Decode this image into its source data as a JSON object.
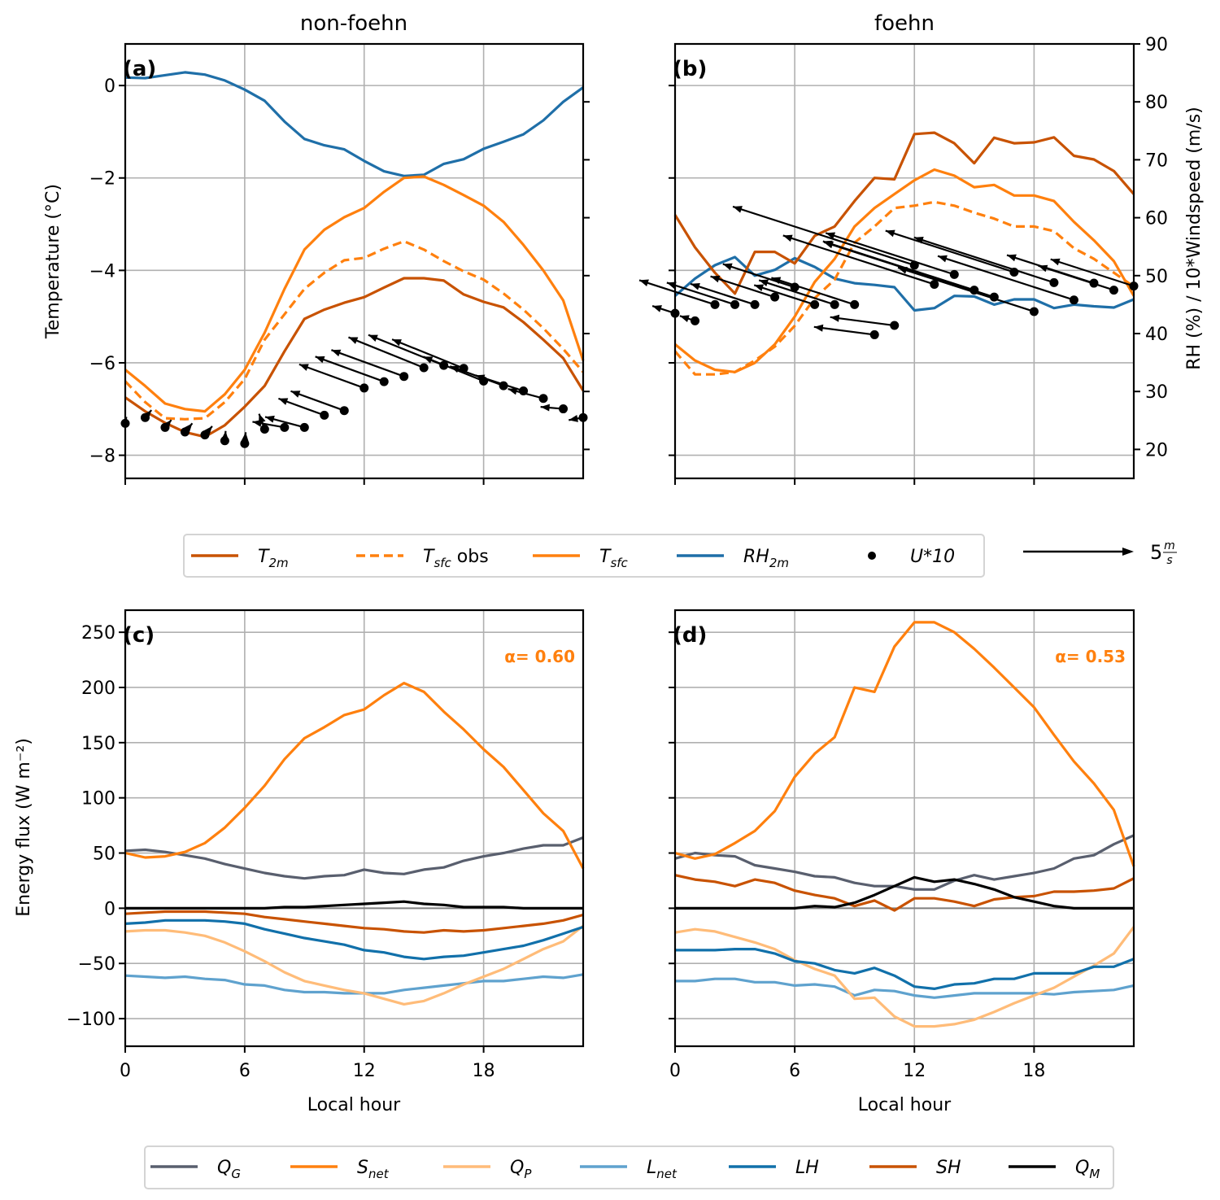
{
  "figure": {
    "legend_top": {
      "items": [
        {
          "key": "T2m",
          "label": "T",
          "sub": "2m",
          "suffix": "",
          "color": "#c85200",
          "dash": false,
          "marker": false
        },
        {
          "key": "Tsfc_obs",
          "label": "T",
          "sub": "sfc",
          "suffix": " obs",
          "color": "#ff800e",
          "dash": true,
          "marker": false
        },
        {
          "key": "Tsfc",
          "label": "T",
          "sub": "sfc",
          "suffix": "",
          "color": "#ff800e",
          "dash": false,
          "marker": false
        },
        {
          "key": "RH2m",
          "label": "RH",
          "sub": "2m",
          "suffix": "",
          "color": "#1f6fa8",
          "dash": false,
          "marker": false
        },
        {
          "key": "U10",
          "label": "U*10",
          "sub": "",
          "suffix": "",
          "color": "#000000",
          "dash": false,
          "marker": true
        }
      ],
      "quiver_key_label": "5",
      "quiver_key_unit_num": "m",
      "quiver_key_unit_den": "s"
    },
    "legend_bottom": {
      "items": [
        {
          "key": "QG",
          "label": "Q",
          "sub": "G",
          "color": "#595f6e"
        },
        {
          "key": "Snet",
          "label": "S",
          "sub": "net",
          "color": "#ff800e"
        },
        {
          "key": "QP",
          "label": "Q",
          "sub": "P",
          "color": "#ffbc79"
        },
        {
          "key": "Lnet",
          "label": "L",
          "sub": "net",
          "color": "#5fa2ce"
        },
        {
          "key": "LH",
          "label": "LH",
          "sub": "",
          "color": "#1170aa"
        },
        {
          "key": "SH",
          "label": "SH",
          "sub": "",
          "color": "#c85200"
        },
        {
          "key": "QM",
          "label": "Q",
          "sub": "M",
          "color": "#000000"
        }
      ]
    }
  },
  "chart_data": [
    {
      "panel": "a",
      "letter": "(a)",
      "type": "line",
      "title": "non-foehn",
      "xlabel": "",
      "ylabel": "Temperature (°C)",
      "xlim": [
        0,
        23
      ],
      "ylim": [
        -8.5,
        0.9
      ],
      "xticks": [
        0,
        6,
        12,
        18
      ],
      "yticks": [
        0,
        -2,
        -4,
        -6,
        -8
      ],
      "ytick_labels": [
        "0",
        "−2",
        "−4",
        "−6",
        "−8"
      ],
      "y2lim": [
        15,
        90
      ],
      "y2ticks": [
        20,
        30,
        40,
        50,
        60,
        70,
        80
      ],
      "grid": true,
      "x": [
        0,
        1,
        2,
        3,
        4,
        5,
        6,
        7,
        8,
        9,
        10,
        11,
        12,
        13,
        14,
        15,
        16,
        17,
        18,
        19,
        20,
        21,
        22,
        23
      ],
      "series": [
        {
          "name": "T2m",
          "axis": "left",
          "values": [
            -6.75,
            -7.05,
            -7.3,
            -7.5,
            -7.6,
            -7.35,
            -6.95,
            -6.5,
            -5.75,
            -5.05,
            -4.85,
            -4.7,
            -4.58,
            -4.37,
            -4.17,
            -4.17,
            -4.22,
            -4.52,
            -4.68,
            -4.8,
            -5.12,
            -5.5,
            -5.9,
            -6.6
          ]
        },
        {
          "name": "Tsfc_obs",
          "axis": "left",
          "values": [
            -6.4,
            -6.85,
            -7.2,
            -7.22,
            -7.2,
            -6.85,
            -6.35,
            -5.5,
            -4.95,
            -4.4,
            -4.05,
            -3.78,
            -3.73,
            -3.53,
            -3.37,
            -3.55,
            -3.8,
            -4.02,
            -4.2,
            -4.5,
            -4.85,
            -5.25,
            -5.7,
            -6.2
          ]
        },
        {
          "name": "Tsfc",
          "axis": "left",
          "values": [
            -6.15,
            -6.5,
            -6.88,
            -7.0,
            -7.05,
            -6.68,
            -6.15,
            -5.35,
            -4.4,
            -3.55,
            -3.12,
            -2.85,
            -2.65,
            -2.3,
            -2.0,
            -1.97,
            -2.15,
            -2.37,
            -2.6,
            -2.95,
            -3.45,
            -4.0,
            -4.65,
            -5.95
          ]
        },
        {
          "name": "RH2m",
          "axis": "right",
          "values": [
            84.2,
            84.1,
            84.6,
            85.1,
            84.7,
            83.7,
            82.1,
            80.2,
            76.6,
            73.6,
            72.5,
            71.8,
            69.8,
            68.0,
            67.2,
            67.4,
            69.3,
            70.1,
            71.9,
            73.1,
            74.4,
            76.8,
            80.0,
            82.5
          ]
        }
      ],
      "wind_U10": {
        "note": "wind arrows (U*10) anchored at dot positions on the right axis scale",
        "dot_values": [
          24.5,
          25.5,
          23.8,
          23.0,
          22.5,
          21.5,
          21.0,
          23.5,
          23.8,
          23.8,
          25.9,
          26.7,
          30.6,
          31.7,
          32.6,
          34.1,
          34.5,
          34.0,
          31.8,
          31.0,
          30.1,
          28.8,
          27.0,
          25.5
        ],
        "direction": "from east-northeast, pointing west-southwest"
      }
    },
    {
      "panel": "b",
      "letter": "(b)",
      "type": "line",
      "title": "foehn",
      "xlabel": "",
      "ylabel": "",
      "y2label": "RH (%)  /  10*Windspeed (m/s)",
      "xlim": [
        0,
        23
      ],
      "ylim": [
        -8.5,
        0.9
      ],
      "xticks": [
        0,
        6,
        12,
        18
      ],
      "y2lim": [
        15,
        90
      ],
      "y2ticks": [
        20,
        30,
        40,
        50,
        60,
        70,
        80,
        90
      ],
      "grid": true,
      "x": [
        0,
        1,
        2,
        3,
        4,
        5,
        6,
        7,
        8,
        9,
        10,
        11,
        12,
        13,
        14,
        15,
        16,
        17,
        18,
        19,
        20,
        21,
        22,
        23
      ],
      "series": [
        {
          "name": "T2m",
          "axis": "left",
          "values": [
            -2.8,
            -3.5,
            -4.05,
            -4.5,
            -3.6,
            -3.6,
            -3.85,
            -3.25,
            -3.05,
            -2.5,
            -2.0,
            -2.03,
            -1.05,
            -1.02,
            -1.25,
            -1.68,
            -1.13,
            -1.25,
            -1.23,
            -1.12,
            -1.52,
            -1.6,
            -1.85,
            -2.35
          ]
        },
        {
          "name": "Tsfc_obs",
          "axis": "left",
          "values": [
            -5.75,
            -6.25,
            -6.25,
            -6.2,
            -5.95,
            -5.65,
            -5.2,
            -4.6,
            -4.2,
            -3.4,
            -3.05,
            -2.65,
            -2.6,
            -2.52,
            -2.6,
            -2.75,
            -2.88,
            -3.05,
            -3.05,
            -3.15,
            -3.52,
            -3.75,
            -4.05,
            -4.35
          ]
        },
        {
          "name": "Tsfc",
          "axis": "left",
          "values": [
            -5.6,
            -5.95,
            -6.15,
            -6.2,
            -6.0,
            -5.6,
            -5.0,
            -4.25,
            -3.75,
            -3.05,
            -2.65,
            -2.35,
            -2.05,
            -1.82,
            -1.95,
            -2.2,
            -2.15,
            -2.38,
            -2.38,
            -2.5,
            -2.95,
            -3.35,
            -3.8,
            -4.55
          ]
        },
        {
          "name": "RH2m",
          "axis": "right",
          "values": [
            46.5,
            49.5,
            51.8,
            53.2,
            50.0,
            51.0,
            53.0,
            51.5,
            49.5,
            48.7,
            48.4,
            48.0,
            44.0,
            44.4,
            46.5,
            46.4,
            45.0,
            45.9,
            45.9,
            44.4,
            45.0,
            44.7,
            44.5,
            45.9
          ]
        }
      ],
      "wind_U10": {
        "note": "wind arrows (U*10) anchored at dot positions on the right axis scale",
        "dot_values": [
          43.5,
          42.2,
          45.0,
          45.0,
          45.0,
          46.3,
          48.0,
          45.0,
          45.0,
          45.0,
          39.8,
          41.4,
          51.8,
          48.5,
          50.2,
          47.5,
          46.3,
          50.6,
          43.8,
          48.8,
          45.8,
          48.7,
          47.5,
          48.2
        ],
        "direction": "from east-southeast, pointing west-northwest"
      }
    },
    {
      "panel": "c",
      "letter": "(c)",
      "type": "line",
      "title": "",
      "xlabel": "Local hour",
      "ylabel": "Energy flux (W m⁻²)",
      "annotation": "α= 0.60",
      "xlim": [
        0,
        23
      ],
      "ylim": [
        -125,
        270
      ],
      "xticks": [
        0,
        6,
        12,
        18
      ],
      "yticks": [
        250,
        200,
        150,
        100,
        50,
        0,
        -50,
        -100
      ],
      "ytick_labels": [
        "250",
        "200",
        "150",
        "100",
        "50",
        "0",
        "−50",
        "−100"
      ],
      "grid": true,
      "x": [
        0,
        1,
        2,
        3,
        4,
        5,
        6,
        7,
        8,
        9,
        10,
        11,
        12,
        13,
        14,
        15,
        16,
        17,
        18,
        19,
        20,
        21,
        22,
        23
      ],
      "series": [
        {
          "name": "QG",
          "values": [
            52,
            53,
            51,
            48,
            45,
            40,
            36,
            32,
            29,
            27,
            29,
            30,
            35,
            32,
            31,
            35,
            37,
            43,
            47,
            50,
            54,
            57,
            57,
            64
          ]
        },
        {
          "name": "Snet",
          "values": [
            50,
            46,
            47,
            51,
            59,
            73,
            91,
            111,
            135,
            154,
            164,
            175,
            180,
            193,
            204,
            196,
            178,
            162,
            144,
            128,
            107,
            86,
            70,
            36
          ]
        },
        {
          "name": "QP",
          "values": [
            -21,
            -20,
            -20,
            -22,
            -25,
            -31,
            -39,
            -48,
            -58,
            -66,
            -70,
            -74,
            -77,
            -82,
            -87,
            -84,
            -77,
            -69,
            -62,
            -55,
            -46,
            -37,
            -30,
            -16
          ]
        },
        {
          "name": "Lnet",
          "values": [
            -61,
            -62,
            -63,
            -62,
            -64,
            -65,
            -69,
            -70,
            -74,
            -76,
            -76,
            -77,
            -77,
            -77,
            -74,
            -72,
            -70,
            -68,
            -66,
            -66,
            -64,
            -62,
            -63,
            -60
          ]
        },
        {
          "name": "LH",
          "values": [
            -14,
            -13,
            -11,
            -11,
            -11,
            -12,
            -14,
            -19,
            -23,
            -27,
            -30,
            -33,
            -38,
            -40,
            -44,
            -46,
            -44,
            -43,
            -40,
            -37,
            -34,
            -29,
            -23,
            -17
          ]
        },
        {
          "name": "SH",
          "values": [
            -5,
            -4,
            -3,
            -3,
            -3,
            -4,
            -5,
            -8,
            -10,
            -12,
            -14,
            -16,
            -18,
            -19,
            -21,
            -22,
            -20,
            -21,
            -20,
            -18,
            -16,
            -14,
            -11,
            -6
          ]
        },
        {
          "name": "QM",
          "values": [
            0,
            0,
            0,
            0,
            0,
            0,
            0,
            0,
            1,
            1,
            2,
            3,
            4,
            5,
            6,
            4,
            3,
            1,
            1,
            1,
            0,
            0,
            0,
            0
          ]
        }
      ]
    },
    {
      "panel": "d",
      "letter": "(d)",
      "type": "line",
      "title": "",
      "xlabel": "Local hour",
      "ylabel": "",
      "annotation": "α= 0.53",
      "xlim": [
        0,
        23
      ],
      "ylim": [
        -125,
        270
      ],
      "xticks": [
        0,
        6,
        12,
        18
      ],
      "yticks": [
        250,
        200,
        150,
        100,
        50,
        0,
        -50,
        -100
      ],
      "grid": true,
      "x": [
        0,
        1,
        2,
        3,
        4,
        5,
        6,
        7,
        8,
        9,
        10,
        11,
        12,
        13,
        14,
        15,
        16,
        17,
        18,
        19,
        20,
        21,
        22,
        23
      ],
      "series": [
        {
          "name": "QG",
          "values": [
            45,
            50,
            48,
            47,
            39,
            36,
            33,
            29,
            28,
            23,
            20,
            20,
            17,
            17,
            25,
            30,
            26,
            29,
            32,
            36,
            45,
            48,
            58,
            66
          ]
        },
        {
          "name": "Snet",
          "values": [
            50,
            45,
            49,
            59,
            70,
            88,
            119,
            140,
            155,
            200,
            196,
            237,
            259,
            259,
            250,
            235,
            218,
            200,
            182,
            157,
            133,
            113,
            89,
            38
          ]
        },
        {
          "name": "QP",
          "values": [
            -22,
            -19,
            -21,
            -26,
            -31,
            -37,
            -47,
            -55,
            -61,
            -82,
            -81,
            -98,
            -107,
            -107,
            -105,
            -101,
            -94,
            -86,
            -79,
            -72,
            -62,
            -52,
            -41,
            -17
          ]
        },
        {
          "name": "Lnet",
          "values": [
            -66,
            -66,
            -64,
            -64,
            -67,
            -67,
            -70,
            -69,
            -71,
            -79,
            -74,
            -75,
            -79,
            -81,
            -79,
            -77,
            -77,
            -77,
            -77,
            -78,
            -76,
            -75,
            -74,
            -70
          ]
        },
        {
          "name": "LH",
          "values": [
            -38,
            -38,
            -38,
            -37,
            -37,
            -41,
            -48,
            -50,
            -56,
            -59,
            -54,
            -61,
            -71,
            -73,
            -69,
            -68,
            -64,
            -64,
            -59,
            -59,
            -59,
            -53,
            -53,
            -46
          ]
        },
        {
          "name": "SH",
          "values": [
            30,
            26,
            24,
            20,
            26,
            23,
            16,
            12,
            9,
            2,
            7,
            -2,
            9,
            9,
            6,
            2,
            8,
            10,
            11,
            15,
            15,
            16,
            18,
            27
          ]
        },
        {
          "name": "QM",
          "values": [
            0,
            0,
            0,
            0,
            0,
            0,
            0,
            2,
            1,
            5,
            12,
            20,
            28,
            24,
            26,
            22,
            17,
            10,
            6,
            2,
            0,
            0,
            0,
            0
          ]
        }
      ]
    }
  ]
}
